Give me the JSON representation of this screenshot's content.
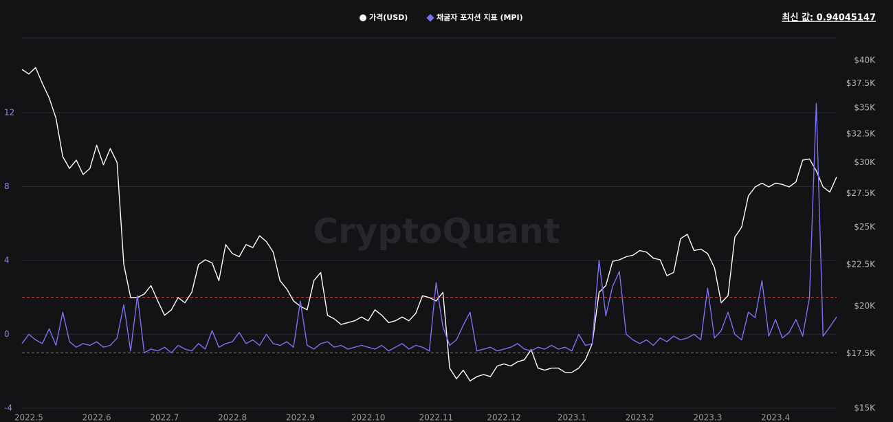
{
  "chart_data": {
    "type": "line",
    "watermark": "CryptoQuant",
    "latest_label": "최신 값: 0.94045147",
    "categories": [
      null,
      "2022.5",
      null,
      null,
      null,
      null,
      null,
      null,
      null,
      null,
      null,
      "2022.6",
      null,
      null,
      null,
      null,
      null,
      null,
      null,
      null,
      null,
      "2022.7",
      null,
      null,
      null,
      null,
      null,
      null,
      null,
      null,
      null,
      "2022.8",
      null,
      null,
      null,
      null,
      null,
      null,
      null,
      null,
      null,
      "2022.9",
      null,
      null,
      null,
      null,
      null,
      null,
      null,
      null,
      null,
      "2022.10",
      null,
      null,
      null,
      null,
      null,
      null,
      null,
      null,
      null,
      "2022.11",
      null,
      null,
      null,
      null,
      null,
      null,
      null,
      null,
      null,
      "2022.12",
      null,
      null,
      null,
      null,
      null,
      null,
      null,
      null,
      null,
      "2023.1",
      null,
      null,
      null,
      null,
      null,
      null,
      null,
      null,
      null,
      "2023.2",
      null,
      null,
      null,
      null,
      null,
      null,
      null,
      null,
      null,
      "2023.3",
      null,
      null,
      null,
      null,
      null,
      null,
      null,
      null,
      null,
      "2023.4",
      null,
      null,
      null,
      null,
      null,
      null,
      null,
      null,
      null
    ],
    "series": [
      {
        "name": "가격(USD)",
        "color": "#ffffff",
        "marker": "circle",
        "axis": "y2",
        "values": [
          39000,
          38500,
          39200,
          37500,
          36000,
          34000,
          30500,
          29500,
          30200,
          29000,
          29500,
          31500,
          29800,
          31200,
          30000,
          22500,
          20500,
          20500,
          20700,
          21200,
          20300,
          19500,
          19800,
          20500,
          20200,
          20800,
          22500,
          22800,
          22600,
          21500,
          23800,
          23200,
          23000,
          23800,
          23600,
          24400,
          24000,
          23300,
          21500,
          21000,
          20300,
          20000,
          19800,
          21500,
          22000,
          19500,
          19300,
          19000,
          19100,
          19200,
          19400,
          19200,
          19800,
          19500,
          19100,
          19200,
          19400,
          19200,
          19600,
          20600,
          20500,
          20300,
          20800,
          16800,
          16300,
          16700,
          16200,
          16400,
          16500,
          16400,
          16900,
          17000,
          16900,
          17100,
          17200,
          17700,
          16800,
          16700,
          16800,
          16800,
          16600,
          16600,
          16800,
          17200,
          18000,
          20800,
          21200,
          22700,
          22800,
          23000,
          23100,
          23400,
          23300,
          22900,
          22800,
          21800,
          22000,
          24200,
          24500,
          23400,
          23500,
          23200,
          22300,
          20200,
          20600,
          24300,
          25000,
          27300,
          28000,
          28300,
          28000,
          28300,
          28200,
          28000,
          28400,
          30200,
          30300,
          29300,
          28000,
          27600,
          28800
        ]
      },
      {
        "name": "채굴자 포지션 지표 (MPI)",
        "color": "#7b72f2",
        "marker": "diamond",
        "axis": "y",
        "values": [
          -0.5,
          0.0,
          -0.3,
          -0.5,
          0.3,
          -0.6,
          1.2,
          -0.4,
          -0.7,
          -0.5,
          -0.6,
          -0.4,
          -0.7,
          -0.6,
          -0.2,
          1.6,
          -0.9,
          2.1,
          -1.0,
          -0.8,
          -0.9,
          -0.7,
          -1.0,
          -0.6,
          -0.8,
          -0.9,
          -0.5,
          -0.8,
          0.2,
          -0.7,
          -0.5,
          -0.4,
          0.1,
          -0.5,
          -0.3,
          -0.6,
          0.0,
          -0.5,
          -0.6,
          -0.4,
          -0.7,
          1.8,
          -0.6,
          -0.8,
          -0.5,
          -0.4,
          -0.7,
          -0.6,
          -0.8,
          -0.7,
          -0.6,
          -0.7,
          -0.8,
          -0.6,
          -0.9,
          -0.7,
          -0.5,
          -0.8,
          -0.6,
          -0.7,
          -0.9,
          2.8,
          0.4,
          -0.6,
          -0.3,
          0.5,
          1.2,
          -0.9,
          -0.8,
          -0.7,
          -0.9,
          -0.8,
          -0.7,
          -0.5,
          -0.8,
          -0.9,
          -0.7,
          -0.8,
          -0.6,
          -0.8,
          -0.7,
          -0.9,
          0.0,
          -0.6,
          -0.5,
          4.0,
          1.0,
          2.6,
          3.4,
          0.0,
          -0.3,
          -0.5,
          -0.3,
          -0.6,
          -0.2,
          -0.4,
          -0.1,
          -0.3,
          -0.2,
          0.0,
          -0.3,
          2.5,
          -0.2,
          0.2,
          1.2,
          0.0,
          -0.3,
          1.2,
          0.9,
          2.9,
          -0.1,
          0.8,
          -0.2,
          0.1,
          0.8,
          -0.1,
          2.0,
          12.5,
          -0.1,
          0.4,
          0.94045147
        ]
      }
    ],
    "ylim": [
      -4.3,
      16.05
    ],
    "yticks": [
      -4,
      0,
      4,
      8,
      12
    ],
    "y2lim": [
      14770,
      42640
    ],
    "y2scale": "log",
    "y2ticks": [
      {
        "value": 15000,
        "label": "$15K"
      },
      {
        "value": 17500,
        "label": "$17.5K"
      },
      {
        "value": 20000,
        "label": "$20K"
      },
      {
        "value": 22500,
        "label": "$22.5K"
      },
      {
        "value": 25000,
        "label": "$25K"
      },
      {
        "value": 27500,
        "label": "$27.5K"
      },
      {
        "value": 30000,
        "label": "$30K"
      },
      {
        "value": 32500,
        "label": "$32.5K"
      },
      {
        "value": 35000,
        "label": "$35K"
      },
      {
        "value": 37500,
        "label": "$37.5K"
      },
      {
        "value": 40000,
        "label": "$40K"
      }
    ],
    "reference_lines": [
      {
        "value": 2,
        "color": "#c0443a"
      },
      {
        "value": -1,
        "color": "#3f9a46"
      }
    ],
    "grid": true
  }
}
